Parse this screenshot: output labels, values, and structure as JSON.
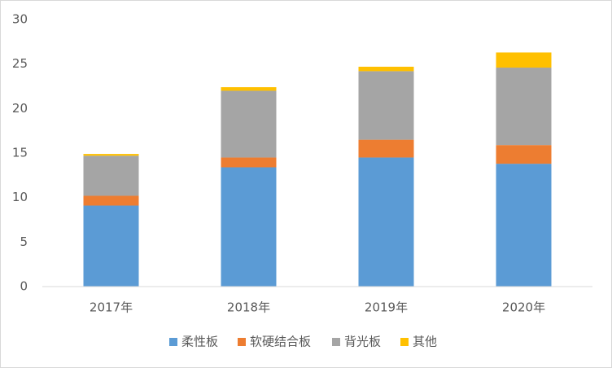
{
  "chart_data": {
    "type": "stacked_bar",
    "categories": [
      "2017年",
      "2018年",
      "2019年",
      "2020年"
    ],
    "series": [
      {
        "name": "柔性板",
        "color": "#5b9bd5",
        "values": [
          9.1,
          13.4,
          14.5,
          13.8
        ]
      },
      {
        "name": "软硬结合板",
        "color": "#ed7d31",
        "values": [
          1.1,
          1.1,
          2.0,
          2.1
        ]
      },
      {
        "name": "背光板",
        "color": "#a5a5a5",
        "values": [
          4.5,
          7.5,
          7.7,
          8.7
        ]
      },
      {
        "name": "其他",
        "color": "#ffc000",
        "values": [
          0.2,
          0.4,
          0.5,
          1.7
        ]
      }
    ],
    "ylim": [
      0,
      30
    ],
    "yticks": [
      0,
      5,
      10,
      15,
      20,
      25,
      30
    ],
    "grid": false,
    "legend": "bottom"
  }
}
